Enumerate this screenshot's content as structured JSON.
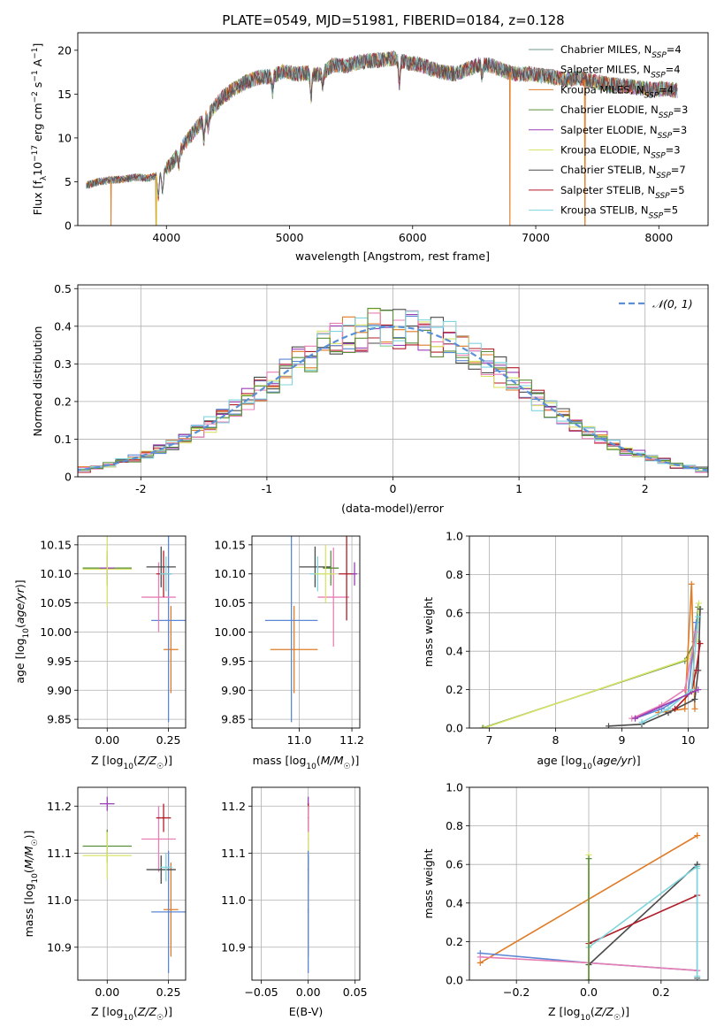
{
  "figure": {
    "title": "PLATE=0549, MJD=51981, FIBERID=0184, z=0.128"
  },
  "colors": {
    "chabrier_miles": "#6c9a8b",
    "salpeter_miles": "#8a8a8a",
    "kroupa_miles": "#e07b26",
    "chabrier_elodie": "#5a8f3a",
    "salpeter_elodie": "#9b3fb5",
    "kroupa_elodie": "#d9e36a",
    "chabrier_stelib": "#4a4a4a",
    "salpeter_stelib": "#b01c28",
    "kroupa_stelib": "#7fd4de",
    "blue": "#5b87d6",
    "pink": "#e77fb5",
    "dashed": "#5b8fd6"
  },
  "chart_data": [
    {
      "id": "spectrum",
      "type": "line",
      "title": "PLATE=0549, MJD=51981, FIBERID=0184, z=0.128",
      "xlabel": "wavelength [Angstrom, rest frame]",
      "ylabel": "Flux [f_λ 10^-17 erg cm^-2 s^-1 A^-1]",
      "xlim": [
        3280,
        8400
      ],
      "ylim": [
        0,
        22
      ],
      "xticks": [
        4000,
        5000,
        6000,
        7000,
        8000
      ],
      "yticks": [
        0,
        5,
        10,
        15,
        20
      ],
      "grid": false,
      "legend_position": "top-right",
      "legend": [
        "Chabrier MILES, N_SSP=4",
        "Salpeter MILES, N_SSP=4",
        "Kroupa MILES, N_SSP=4",
        "Chabrier ELODIE, N_SSP=3",
        "Salpeter ELODIE, N_SSP=3",
        "Kroupa ELODIE, N_SSP=3",
        "Chabrier STELIB, N_SSP=7",
        "Salpeter STELIB, N_SSP=5",
        "Kroupa STELIB, N_SSP=5"
      ],
      "continuum": {
        "x": [
          3350,
          3450,
          3550,
          3650,
          3750,
          3850,
          3950,
          4050,
          4150,
          4250,
          4350,
          4450,
          4550,
          4650,
          4750,
          4850,
          4950,
          5050,
          5150,
          5250,
          5350,
          5450,
          5550,
          5650,
          5750,
          5850,
          5950,
          6050,
          6150,
          6250,
          6350,
          6450,
          6550,
          6650,
          6750,
          6850,
          6950,
          7050,
          7150,
          7250,
          7350,
          7450,
          7550,
          7650,
          7750,
          7850,
          7950,
          8050,
          8150
        ],
        "y": [
          4.6,
          5.0,
          5.2,
          5.3,
          5.5,
          5.4,
          5.8,
          7.2,
          9.4,
          11.2,
          12.8,
          14.6,
          15.6,
          16.4,
          16.9,
          17.0,
          17.6,
          17.3,
          17.4,
          17.2,
          18.3,
          18.2,
          18.6,
          18.8,
          18.9,
          19.1,
          18.6,
          18.4,
          17.9,
          17.5,
          17.3,
          17.9,
          18.4,
          18.2,
          17.6,
          17.3,
          17.3,
          17.1,
          16.9,
          16.6,
          16.9,
          16.5,
          16.2,
          16.0,
          15.9,
          15.7,
          15.5,
          15.6,
          15.4
        ]
      },
      "absorption_lines": [
        {
          "x": 3934,
          "depth": 2.6
        },
        {
          "x": 3969,
          "depth": 2.2
        },
        {
          "x": 4102,
          "depth": 1.4
        },
        {
          "x": 4305,
          "depth": 2.3
        },
        {
          "x": 4341,
          "depth": 1.5
        },
        {
          "x": 4861,
          "depth": 1.8
        },
        {
          "x": 5175,
          "depth": 2.6
        },
        {
          "x": 5270,
          "depth": 1.4
        },
        {
          "x": 5892,
          "depth": 2.8
        },
        {
          "x": 6563,
          "depth": 1.2
        }
      ],
      "dropouts": [
        {
          "x": 3550,
          "series": "kroupa_miles"
        },
        {
          "x": 3915,
          "series": "kroupa_miles"
        },
        {
          "x": 3920,
          "series": "kroupa_elodie"
        },
        {
          "x": 6790,
          "series": "kroupa_miles"
        },
        {
          "x": 7400,
          "series": "kroupa_miles"
        }
      ]
    },
    {
      "id": "residuals",
      "type": "line",
      "xlabel": "(data-model)/error",
      "ylabel": "Normed distribution",
      "xlim": [
        -2.5,
        2.5
      ],
      "ylim": [
        0,
        0.51
      ],
      "xticks": [
        -2,
        -1,
        0,
        1,
        2
      ],
      "yticks": [
        0.0,
        0.1,
        0.2,
        0.3,
        0.4,
        0.5
      ],
      "grid": true,
      "legend_position": "top-right",
      "legend": [
        "𝒩(0, 1)"
      ],
      "bin_width": 0.1,
      "gaussian": {
        "mean": 0,
        "sigma": 1
      }
    },
    {
      "id": "age_vs_Z",
      "type": "scatter",
      "xlabel": "Z [log10(Z/Z☉)]",
      "ylabel": "age [log10(age/yr)]",
      "xlim": [
        -0.12,
        0.32
      ],
      "ylim": [
        9.835,
        10.165
      ],
      "xticks": [
        0.0,
        0.25
      ],
      "xticklabels": [
        "0.00",
        "0.25"
      ],
      "yticks": [
        9.85,
        9.9,
        9.95,
        10.0,
        10.05,
        10.1,
        10.15
      ],
      "yticklabels": [
        "9.85",
        "9.90",
        "9.95",
        "10.00",
        "10.05",
        "10.10",
        "10.15"
      ],
      "grid": true,
      "points": [
        {
          "series": "kroupa_miles",
          "x": 0.26,
          "xerr": 0.03,
          "y": 9.97,
          "yerr": 0.075
        },
        {
          "series": "blue",
          "x": 0.25,
          "xerr": 0.07,
          "y": 10.02,
          "yerr": 0.175
        },
        {
          "series": "pink",
          "x": 0.21,
          "xerr": 0.07,
          "y": 10.06,
          "yerr": 0.06
        },
        {
          "series": "salpeter_stelib",
          "x": 0.23,
          "xerr": 0.03,
          "y": 10.1,
          "yerr": 0.04
        },
        {
          "series": "chabrier_stelib",
          "x": 0.22,
          "xerr": 0.06,
          "y": 10.112,
          "yerr": 0.035
        },
        {
          "series": "kroupa_stelib",
          "x": 0.24,
          "xerr": 0.025,
          "y": 10.1,
          "yerr": 0.03
        },
        {
          "series": "chabrier_elodie",
          "x": 0.0,
          "xerr": 0.1,
          "y": 10.11,
          "yerr": 0.03
        },
        {
          "series": "salpeter_elodie",
          "x": 0.0,
          "xerr": 0.03,
          "y": 10.11,
          "yerr": 0.02
        },
        {
          "series": "kroupa_elodie",
          "x": 0.0,
          "xerr": 0.1,
          "y": 10.108,
          "yerr": 0.065
        }
      ]
    },
    {
      "id": "age_vs_mass",
      "type": "scatter",
      "xlabel": "mass [log10(M/M☉)]",
      "ylabel": "",
      "xlim": [
        10.82,
        11.23
      ],
      "ylim": [
        9.835,
        10.165
      ],
      "xticks": [
        11.0,
        11.2
      ],
      "xticklabels": [
        "11.0",
        "11.2"
      ],
      "yticks": [
        9.85,
        9.9,
        9.95,
        10.0,
        10.05,
        10.1,
        10.15
      ],
      "yticklabels": [
        "9.85",
        "9.90",
        "9.95",
        "10.00",
        "10.05",
        "10.10",
        "10.15"
      ],
      "grid": true,
      "points": [
        {
          "series": "kroupa_miles",
          "x": 10.98,
          "xerr": 0.09,
          "y": 9.97,
          "yerr": 0.075
        },
        {
          "series": "blue",
          "x": 10.97,
          "xerr": 0.1,
          "y": 10.02,
          "yerr": 0.175
        },
        {
          "series": "pink",
          "x": 11.13,
          "xerr": 0.06,
          "y": 10.06,
          "yerr": 0.085
        },
        {
          "series": "salpeter_stelib",
          "x": 11.18,
          "xerr": 0.03,
          "y": 10.1,
          "yerr": 0.08
        },
        {
          "series": "chabrier_stelib",
          "x": 11.06,
          "xerr": 0.06,
          "y": 10.112,
          "yerr": 0.035
        },
        {
          "series": "kroupa_stelib",
          "x": 11.07,
          "xerr": 0.03,
          "y": 10.1,
          "yerr": 0.03
        },
        {
          "series": "chabrier_elodie",
          "x": 11.12,
          "xerr": 0.03,
          "y": 10.11,
          "yerr": 0.03
        },
        {
          "series": "salpeter_elodie",
          "x": 11.21,
          "xerr": 0.01,
          "y": 10.1,
          "yerr": 0.02
        },
        {
          "series": "kroupa_elodie",
          "x": 11.1,
          "xerr": 0.04,
          "y": 10.1,
          "yerr": 0.05
        }
      ]
    },
    {
      "id": "mass_weight_vs_age",
      "type": "line",
      "xlabel": "age [log10(age/yr)]",
      "ylabel": "mass weight",
      "xlim": [
        6.7,
        10.3
      ],
      "ylim": [
        0,
        1
      ],
      "xticks": [
        7,
        8,
        9,
        10
      ],
      "yticks": [
        0.0,
        0.2,
        0.4,
        0.6,
        0.8,
        1.0
      ],
      "yticklabels": [
        "0.0",
        "0.2",
        "0.4",
        "0.6",
        "0.8",
        "1.0"
      ],
      "grid": true,
      "series": [
        {
          "series": "chabrier_elodie",
          "x": [
            6.9,
            9.95,
            10.1,
            10.15
          ],
          "y": [
            0.0,
            0.35,
            0.45,
            0.63
          ]
        },
        {
          "series": "kroupa_elodie",
          "x": [
            6.92,
            10.0,
            10.13,
            10.16
          ],
          "y": [
            0.0,
            0.36,
            0.46,
            0.65
          ]
        },
        {
          "series": "kroupa_miles",
          "x": [
            9.55,
            9.95,
            10.05,
            10.1
          ],
          "y": [
            0.08,
            0.1,
            0.75,
            0.1
          ]
        },
        {
          "series": "chabrier_stelib",
          "x": [
            8.8,
            9.3,
            9.7,
            10.1,
            10.15,
            10.18
          ],
          "y": [
            0.01,
            0.02,
            0.08,
            0.15,
            0.3,
            0.62
          ]
        },
        {
          "series": "salpeter_stelib",
          "x": [
            9.8,
            10.05,
            10.12,
            10.18
          ],
          "y": [
            0.1,
            0.19,
            0.3,
            0.44
          ]
        },
        {
          "series": "blue",
          "x": [
            9.2,
            9.6,
            10.0,
            10.12
          ],
          "y": [
            0.05,
            0.1,
            0.18,
            0.55
          ]
        },
        {
          "series": "pink",
          "x": [
            9.15,
            9.6,
            9.95,
            10.12
          ],
          "y": [
            0.05,
            0.12,
            0.2,
            0.5
          ]
        },
        {
          "series": "kroupa_stelib",
          "x": [
            9.3,
            9.7,
            10.05,
            10.15
          ],
          "y": [
            0.03,
            0.1,
            0.2,
            0.58
          ]
        },
        {
          "series": "salpeter_elodie",
          "x": [
            9.2,
            10.15
          ],
          "y": [
            0.05,
            0.2
          ]
        }
      ]
    },
    {
      "id": "mass_vs_Z",
      "type": "scatter",
      "xlabel": "Z [log10(Z/Z☉)]",
      "ylabel": "mass [log10(M/M☉)]",
      "xlim": [
        -0.12,
        0.32
      ],
      "ylim": [
        10.83,
        11.24
      ],
      "xticks": [
        0.0,
        0.25
      ],
      "xticklabels": [
        "0.00",
        "0.25"
      ],
      "yticks": [
        10.9,
        11.0,
        11.1,
        11.2
      ],
      "yticklabels": [
        "10.9",
        "11.0",
        "11.1",
        "11.2"
      ],
      "grid": true,
      "points": [
        {
          "series": "kroupa_miles",
          "x": 0.26,
          "xerr": 0.03,
          "y": 10.98,
          "yerr": 0.1
        },
        {
          "series": "blue",
          "x": 0.25,
          "xerr": 0.07,
          "y": 10.975,
          "yerr": 0.13
        },
        {
          "series": "pink",
          "x": 0.21,
          "xerr": 0.07,
          "y": 11.13,
          "yerr": 0.07
        },
        {
          "series": "salpeter_stelib",
          "x": 0.23,
          "xerr": 0.03,
          "y": 11.175,
          "yerr": 0.03
        },
        {
          "series": "chabrier_stelib",
          "x": 0.22,
          "xerr": 0.06,
          "y": 11.065,
          "yerr": 0.03
        },
        {
          "series": "kroupa_stelib",
          "x": 0.24,
          "xerr": 0.025,
          "y": 11.07,
          "yerr": 0.03
        },
        {
          "series": "chabrier_elodie",
          "x": 0.0,
          "xerr": 0.1,
          "y": 11.115,
          "yerr": 0.035
        },
        {
          "series": "salpeter_elodie",
          "x": 0.0,
          "xerr": 0.03,
          "y": 11.205,
          "yerr": 0.015
        },
        {
          "series": "kroupa_elodie",
          "x": 0.0,
          "xerr": 0.1,
          "y": 11.095,
          "yerr": 0.05
        }
      ]
    },
    {
      "id": "mass_vs_ebv",
      "type": "scatter",
      "xlabel": "E(B-V)",
      "ylabel": "",
      "xlim": [
        -0.06,
        0.055
      ],
      "ylim": [
        10.83,
        11.24
      ],
      "xticks": [
        -0.05,
        0.0,
        0.05
      ],
      "xticklabels": [
        "−0.05",
        "0.00",
        "0.05"
      ],
      "yticks": [
        10.9,
        11.0,
        11.1,
        11.2
      ],
      "yticklabels": [
        "10.9",
        "11.0",
        "11.1",
        "11.2"
      ],
      "grid": true,
      "points": [
        {
          "series": "salpeter_elodie",
          "x": 0.0,
          "xerr": 0.0,
          "y": 11.205,
          "yerr": 0.015
        },
        {
          "series": "salpeter_stelib",
          "x": 0.0,
          "xerr": 0.0,
          "y": 11.175,
          "yerr": 0.03
        },
        {
          "series": "pink",
          "x": 0.0,
          "xerr": 0.0,
          "y": 11.13,
          "yerr": 0.07
        },
        {
          "series": "kroupa_elodie",
          "x": 0.0,
          "xerr": 0.0,
          "y": 11.095,
          "yerr": 0.05
        },
        {
          "series": "kroupa_stelib",
          "x": 0.0,
          "xerr": 0.0,
          "y": 11.07,
          "yerr": 0.03
        },
        {
          "series": "chabrier_stelib",
          "x": 0.0,
          "xerr": 0.0,
          "y": 11.065,
          "yerr": 0.03
        },
        {
          "series": "kroupa_miles",
          "x": 0.0,
          "xerr": 0.0,
          "y": 10.98,
          "yerr": 0.1
        },
        {
          "series": "blue",
          "x": 0.0,
          "xerr": 0.0,
          "y": 10.975,
          "yerr": 0.13
        }
      ]
    },
    {
      "id": "mass_weight_vs_Z",
      "type": "line",
      "xlabel": "Z [log10(Z/Z☉)]",
      "ylabel": "mass weight",
      "xlim": [
        -0.33,
        0.33
      ],
      "ylim": [
        0,
        1
      ],
      "xticks": [
        -0.2,
        0.0,
        0.2
      ],
      "xticklabels": [
        "−0.2",
        "0.0",
        "0.2"
      ],
      "yticks": [
        0.0,
        0.2,
        0.4,
        0.6,
        0.8,
        1.0
      ],
      "yticklabels": [
        "0.0",
        "0.2",
        "0.4",
        "0.6",
        "0.8",
        "1.0"
      ],
      "grid": true,
      "series": [
        {
          "series": "kroupa_miles",
          "x": [
            -0.3,
            0.3
          ],
          "y": [
            0.09,
            0.75
          ]
        },
        {
          "series": "blue",
          "x": [
            -0.3,
            0.0,
            0.3
          ],
          "y": [
            0.14,
            0.09,
            0.05
          ]
        },
        {
          "series": "pink",
          "x": [
            -0.3,
            0.0,
            0.3
          ],
          "y": [
            0.12,
            0.09,
            0.05
          ]
        },
        {
          "series": "chabrier_stelib",
          "x": [
            0.0,
            0.3
          ],
          "y": [
            0.08,
            0.6
          ]
        },
        {
          "series": "salpeter_stelib",
          "x": [
            0.0,
            0.3
          ],
          "y": [
            0.19,
            0.44
          ]
        },
        {
          "series": "kroupa_stelib",
          "x": [
            0.0,
            0.3
          ],
          "y": [
            0.17,
            0.59
          ]
        },
        {
          "series": "kroupa_elodie",
          "x": [
            0.0,
            0.0
          ],
          "y": [
            0.0,
            0.65
          ]
        },
        {
          "series": "chabrier_elodie",
          "x": [
            0.0,
            0.0
          ],
          "y": [
            0.0,
            0.63
          ]
        },
        {
          "series": "chabrier_stelib",
          "x": [
            0.3,
            0.3
          ],
          "y": [
            0.01,
            0.6
          ]
        },
        {
          "series": "kroupa_stelib",
          "x": [
            0.3,
            0.3
          ],
          "y": [
            0.02,
            0.58
          ]
        }
      ]
    }
  ]
}
